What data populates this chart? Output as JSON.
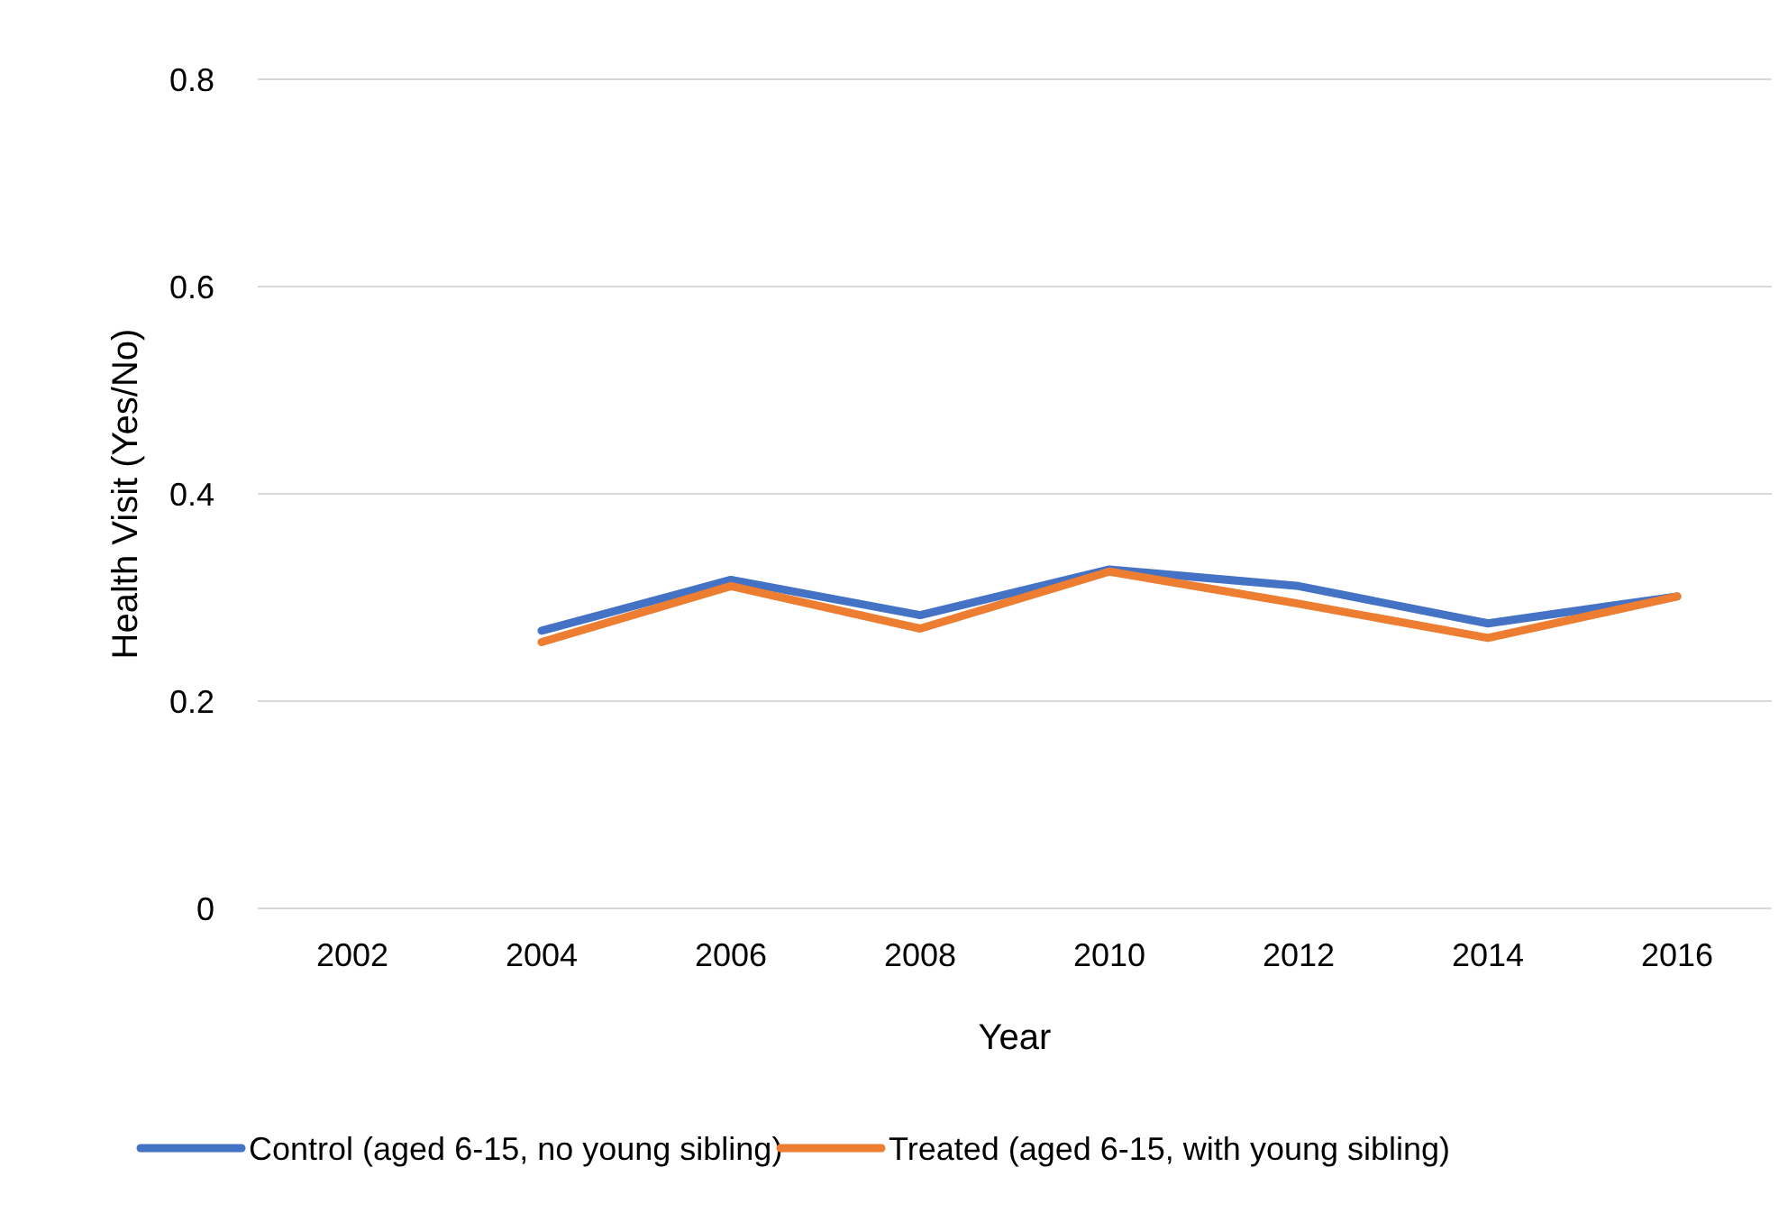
{
  "chart_data": {
    "type": "line",
    "xlabel": "Year",
    "ylabel": "Health Visit (Yes/No)",
    "categories": [
      "2002",
      "2004",
      "2006",
      "2008",
      "2010",
      "2012",
      "2014",
      "2016"
    ],
    "series": [
      {
        "name": "Control (aged 6-15, no young sibling)",
        "color": "#4472c4",
        "values": [
          null,
          0.268,
          0.317,
          0.283,
          0.327,
          0.311,
          0.275,
          0.301
        ]
      },
      {
        "name": "Treated (aged 6-15, with young sibling)",
        "color": "#ed7d31",
        "values": [
          null,
          0.257,
          0.311,
          0.27,
          0.325,
          0.294,
          0.261,
          0.301
        ]
      }
    ],
    "ylim": [
      0,
      0.8
    ],
    "yticks": [
      0,
      0.2,
      0.4,
      0.6,
      0.8
    ],
    "grid": "y",
    "legend": "bottom",
    "marker": "none",
    "line_style": "solid"
  }
}
